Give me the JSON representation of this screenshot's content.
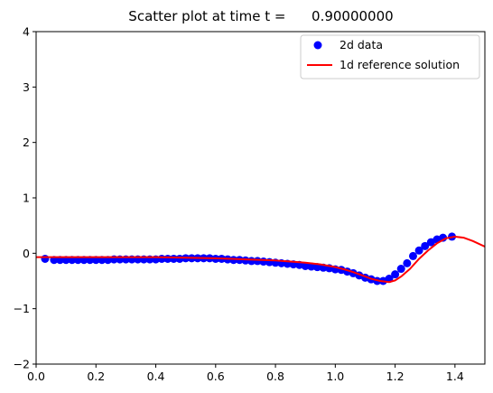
{
  "chart_data": {
    "type": "scatter",
    "title": "Scatter plot at time t =      0.90000000",
    "xlabel": "",
    "ylabel": "",
    "xlim": [
      0.0,
      1.5
    ],
    "ylim": [
      -2,
      4
    ],
    "x_ticks": [
      "0.0",
      "0.2",
      "0.4",
      "0.6",
      "0.8",
      "1.0",
      "1.2",
      "1.4"
    ],
    "x_tick_values": [
      0.0,
      0.2,
      0.4,
      0.6,
      0.8,
      1.0,
      1.2,
      1.4
    ],
    "y_ticks": [
      "−2",
      "−1",
      "0",
      "1",
      "2",
      "3",
      "4"
    ],
    "y_tick_values": [
      -2,
      -1,
      0,
      1,
      2,
      3,
      4
    ],
    "grid": false,
    "legend": "top-right",
    "series": [
      {
        "name": "2d data",
        "kind": "scatter",
        "color": "#0000ff",
        "x": [
          0.03,
          0.06,
          0.08,
          0.1,
          0.12,
          0.14,
          0.16,
          0.18,
          0.2,
          0.22,
          0.24,
          0.26,
          0.28,
          0.3,
          0.32,
          0.34,
          0.36,
          0.38,
          0.4,
          0.42,
          0.44,
          0.46,
          0.48,
          0.5,
          0.52,
          0.54,
          0.56,
          0.58,
          0.6,
          0.62,
          0.64,
          0.66,
          0.68,
          0.7,
          0.72,
          0.74,
          0.76,
          0.78,
          0.8,
          0.82,
          0.84,
          0.86,
          0.88,
          0.9,
          0.92,
          0.94,
          0.96,
          0.98,
          1.0,
          1.02,
          1.04,
          1.06,
          1.08,
          1.1,
          1.12,
          1.14,
          1.16,
          1.18,
          1.2,
          1.22,
          1.24,
          1.26,
          1.28,
          1.3,
          1.32,
          1.34,
          1.36,
          1.39
        ],
        "y": [
          -0.1,
          -0.12,
          -0.12,
          -0.12,
          -0.12,
          -0.12,
          -0.12,
          -0.12,
          -0.12,
          -0.12,
          -0.12,
          -0.11,
          -0.11,
          -0.11,
          -0.11,
          -0.11,
          -0.11,
          -0.11,
          -0.11,
          -0.1,
          -0.1,
          -0.1,
          -0.1,
          -0.09,
          -0.09,
          -0.09,
          -0.09,
          -0.09,
          -0.1,
          -0.1,
          -0.11,
          -0.12,
          -0.12,
          -0.13,
          -0.14,
          -0.14,
          -0.15,
          -0.16,
          -0.17,
          -0.18,
          -0.19,
          -0.2,
          -0.21,
          -0.23,
          -0.24,
          -0.25,
          -0.26,
          -0.27,
          -0.29,
          -0.3,
          -0.33,
          -0.36,
          -0.4,
          -0.44,
          -0.47,
          -0.5,
          -0.5,
          -0.46,
          -0.38,
          -0.28,
          -0.18,
          -0.05,
          0.05,
          0.13,
          0.2,
          0.25,
          0.28,
          0.3
        ]
      },
      {
        "name": "1d reference solution",
        "kind": "line",
        "color": "#ff0000",
        "x": [
          0.0,
          0.1,
          0.2,
          0.3,
          0.4,
          0.5,
          0.6,
          0.7,
          0.8,
          0.85,
          0.9,
          0.95,
          1.0,
          1.03,
          1.06,
          1.09,
          1.12,
          1.15,
          1.18,
          1.2,
          1.22,
          1.25,
          1.28,
          1.31,
          1.34,
          1.37,
          1.4,
          1.43,
          1.46,
          1.5
        ],
        "y": [
          -0.07,
          -0.07,
          -0.07,
          -0.07,
          -0.07,
          -0.08,
          -0.09,
          -0.11,
          -0.13,
          -0.15,
          -0.17,
          -0.2,
          -0.25,
          -0.29,
          -0.34,
          -0.4,
          -0.46,
          -0.5,
          -0.52,
          -0.49,
          -0.42,
          -0.28,
          -0.1,
          0.05,
          0.18,
          0.27,
          0.3,
          0.28,
          0.22,
          0.12
        ]
      }
    ]
  }
}
